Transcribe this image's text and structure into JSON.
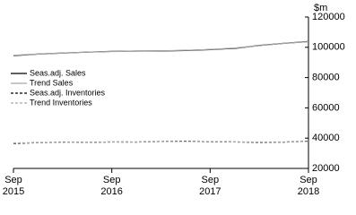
{
  "chart_data": {
    "type": "line",
    "y_label": "$m",
    "categories": [
      "Sep 2015",
      null,
      null,
      null,
      "Sep 2016",
      null,
      null,
      null,
      "Sep 2017",
      null,
      null,
      null,
      "Sep 2018"
    ],
    "ylim": [
      20000,
      120000
    ],
    "yticks": [
      20000,
      40000,
      60000,
      80000,
      100000,
      120000
    ],
    "series": [
      {
        "name": "Seas.adj. Sales",
        "color": "#000000",
        "dash": false,
        "values": [
          94500,
          95500,
          96200,
          96800,
          97300,
          97500,
          97600,
          97900,
          98500,
          99300,
          101200,
          102600,
          103800
        ]
      },
      {
        "name": "Trend Sales",
        "color": "#a6a6a6",
        "dash": false,
        "values": [
          94700,
          95500,
          96200,
          96800,
          97200,
          97500,
          97700,
          98000,
          98600,
          99500,
          101100,
          102600,
          103700
        ]
      },
      {
        "name": "Seas.adj. Inventories",
        "color": "#000000",
        "dash": true,
        "values": [
          36500,
          37000,
          37300,
          37200,
          37500,
          37400,
          37800,
          38000,
          37600,
          37500,
          37200,
          37400,
          38000
        ]
      },
      {
        "name": "Trend Inventories",
        "color": "#a6a6a6",
        "dash": true,
        "values": [
          36800,
          37000,
          37200,
          37300,
          37400,
          37500,
          37700,
          37800,
          37700,
          37500,
          37400,
          37500,
          37800
        ]
      }
    ]
  }
}
